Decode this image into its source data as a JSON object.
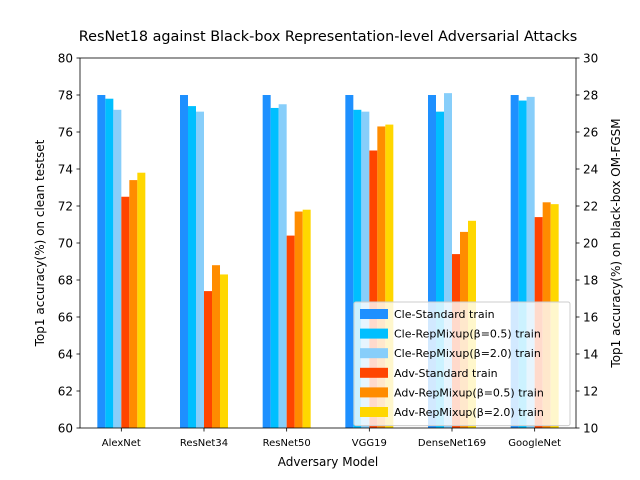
{
  "chart_data": {
    "type": "bar",
    "title": "ResNet18 against Black-box Representation-level Adversarial Attacks",
    "xlabel": "Adversary Model",
    "ylabel": "Top1 accuracy(%) on clean testset",
    "y2label": "Top1 accuracy(%) on black-box OM-FGSM",
    "categories": [
      "AlexNet",
      "ResNet34",
      "ResNet50",
      "VGG19",
      "DenseNet169",
      "GoogleNet"
    ],
    "ylim": [
      60,
      80
    ],
    "y2lim": [
      10,
      30
    ],
    "yticks": [
      "60",
      "62",
      "64",
      "66",
      "68",
      "70",
      "72",
      "74",
      "76",
      "78",
      "80"
    ],
    "y2ticks": [
      "10",
      "12",
      "14",
      "16",
      "18",
      "20",
      "22",
      "24",
      "26",
      "28",
      "30"
    ],
    "grid": false,
    "legend_position": "lower-right",
    "series": [
      {
        "name": "Cle-Standard train",
        "axis": "left",
        "color": "#1e90ff",
        "values": [
          78.0,
          78.0,
          78.0,
          78.0,
          78.0,
          78.0
        ]
      },
      {
        "name": "Cle-RepMixup(β=0.5) train",
        "axis": "left",
        "color": "#00bfff",
        "values": [
          77.8,
          77.4,
          77.3,
          77.2,
          77.1,
          77.7
        ]
      },
      {
        "name": "Cle-RepMixup(β=2.0) train",
        "axis": "left",
        "color": "#87cefa",
        "values": [
          77.2,
          77.1,
          77.5,
          77.1,
          78.1,
          77.9
        ]
      },
      {
        "name": "Adv-Standard train",
        "axis": "right",
        "color": "#ff4500",
        "values": [
          22.5,
          17.4,
          20.4,
          25.0,
          19.4,
          21.4
        ]
      },
      {
        "name": "Adv-RepMixup(β=0.5) train",
        "axis": "right",
        "color": "#ff8c00",
        "values": [
          23.4,
          18.8,
          21.7,
          26.3,
          20.6,
          22.2
        ]
      },
      {
        "name": "Adv-RepMixup(β=2.0) train",
        "axis": "right",
        "color": "#ffd700",
        "values": [
          23.8,
          18.3,
          21.8,
          26.4,
          21.2,
          22.1
        ]
      }
    ]
  }
}
